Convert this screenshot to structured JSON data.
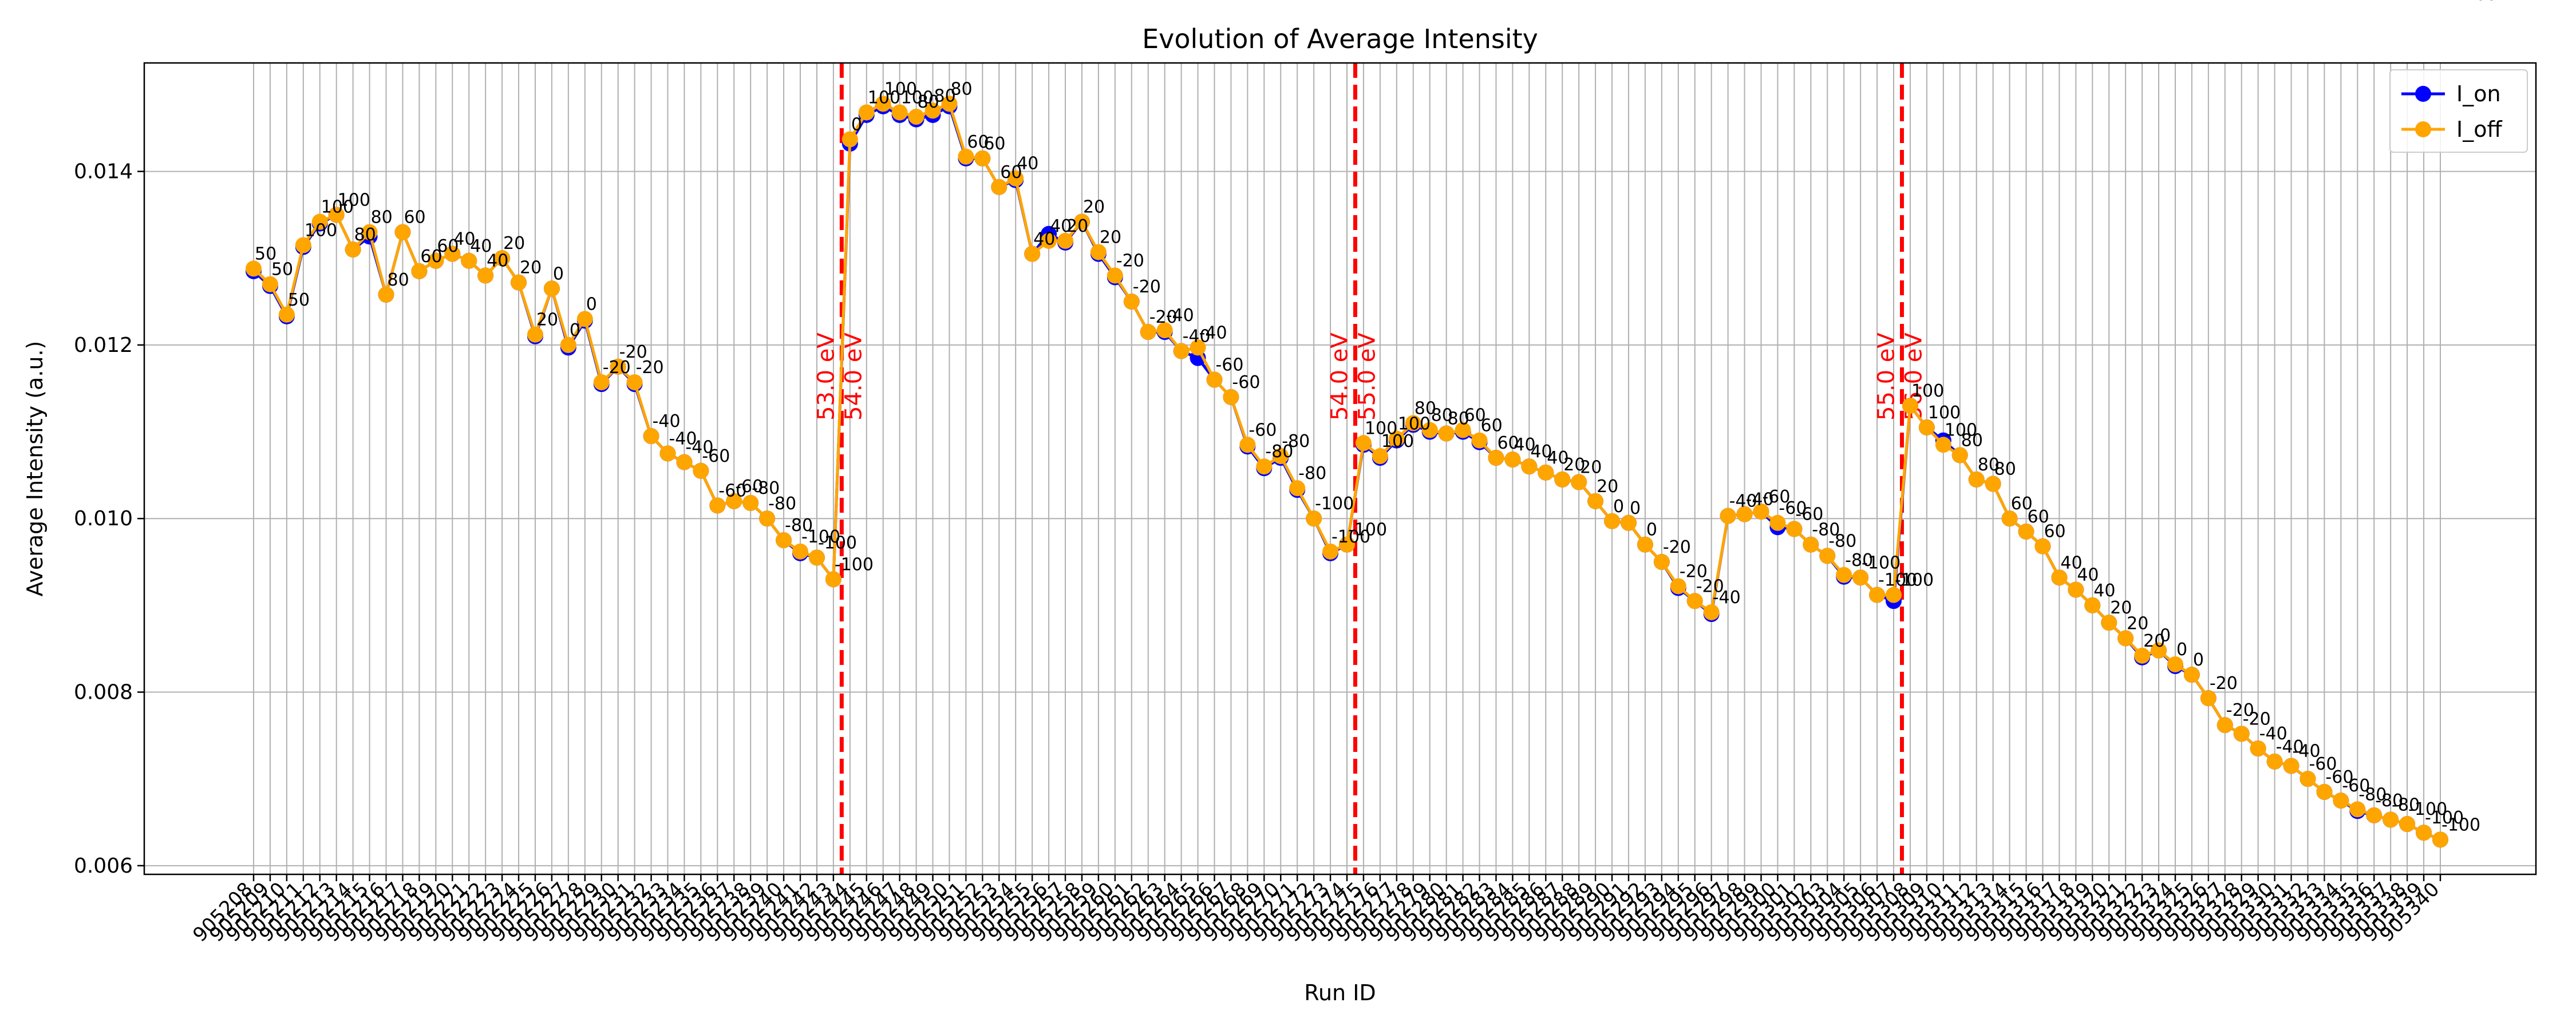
{
  "chart_data": {
    "type": "line",
    "title": "Evolution of Average Intensity",
    "xlabel": "Run ID",
    "ylabel": "Average Intensity (a.u.)",
    "ylim": [
      0.0059,
      0.01525
    ],
    "yticks": [
      0.006,
      0.008,
      0.01,
      0.012,
      0.014
    ],
    "ytick_labels": [
      "0.006",
      "0.008",
      "0.010",
      "0.012",
      "0.014"
    ],
    "grid": true,
    "legend_position": "top-right",
    "colors": {
      "I_on": "#0000ff",
      "I_off": "#ffa500",
      "vline": "#ff0000",
      "grid": "#b0b0b0"
    },
    "series": [
      {
        "name": "I_on",
        "values": [
          0.01285,
          0.01268,
          0.01233,
          0.01313,
          0.0134,
          0.0135,
          0.0131,
          0.01325,
          0.01258,
          0.0133,
          0.01285,
          0.01297,
          0.01305,
          0.01297,
          0.0128,
          0.013,
          0.01272,
          0.0121,
          0.01265,
          0.01197,
          0.01228,
          0.01155,
          0.01175,
          0.01155,
          0.01095,
          0.01075,
          0.01065,
          0.01055,
          0.01015,
          0.0102,
          0.01018,
          0.01,
          0.00975,
          0.0096,
          0.00955,
          0.0093,
          0.01432,
          0.01465,
          0.01475,
          0.01465,
          0.0146,
          0.01465,
          0.01475,
          0.01415,
          0.01415,
          0.01382,
          0.0139,
          0.01305,
          0.01328,
          0.01318,
          0.01342,
          0.01305,
          0.01278,
          0.0125,
          0.01215,
          0.01215,
          0.01193,
          0.01185,
          0.0116,
          0.0114,
          0.01083,
          0.01058,
          0.0107,
          0.01033,
          0.01,
          0.0096,
          0.0097,
          0.01085,
          0.0107,
          0.0109,
          0.01108,
          0.011,
          0.01098,
          0.011,
          0.01088,
          0.0107,
          0.01068,
          0.0106,
          0.01053,
          0.01045,
          0.01042,
          0.0102,
          0.00997,
          0.00995,
          0.0097,
          0.0095,
          0.0092,
          0.00905,
          0.0089,
          0.01003,
          0.01005,
          0.01008,
          0.0099,
          0.00988,
          0.0097,
          0.00957,
          0.00933,
          0.00932,
          0.00912,
          0.00905,
          0.0113,
          0.01105,
          0.0109,
          0.01073,
          0.01045,
          0.0104,
          0.01,
          0.00985,
          0.00968,
          0.00932,
          0.00918,
          0.009,
          0.0088,
          0.00862,
          0.0084,
          0.00848,
          0.0083,
          0.0082,
          0.00793,
          0.00762,
          0.00752,
          0.00735,
          0.0072,
          0.00715,
          0.007,
          0.00685,
          0.00675,
          0.00663,
          0.00658,
          0.00653,
          0.00648,
          0.00638,
          0.0063
        ]
      },
      {
        "name": "I_off",
        "values": [
          0.01288,
          0.0127,
          0.01235,
          0.01315,
          0.01342,
          0.0135,
          0.0131,
          0.0133,
          0.01258,
          0.0133,
          0.01285,
          0.01297,
          0.01305,
          0.01297,
          0.0128,
          0.013,
          0.01272,
          0.01212,
          0.01265,
          0.012,
          0.0123,
          0.01157,
          0.01175,
          0.01157,
          0.01095,
          0.01075,
          0.01065,
          0.01055,
          0.01015,
          0.0102,
          0.01018,
          0.01,
          0.00975,
          0.00962,
          0.00955,
          0.0093,
          0.01437,
          0.01468,
          0.01478,
          0.01468,
          0.01463,
          0.0147,
          0.01478,
          0.01417,
          0.01415,
          0.01382,
          0.01392,
          0.01305,
          0.0132,
          0.0132,
          0.01342,
          0.01307,
          0.0128,
          0.0125,
          0.01215,
          0.01217,
          0.01193,
          0.01197,
          0.0116,
          0.0114,
          0.01085,
          0.0106,
          0.01072,
          0.01035,
          0.01,
          0.00962,
          0.0097,
          0.01087,
          0.01072,
          0.01092,
          0.0111,
          0.01102,
          0.01098,
          0.01102,
          0.0109,
          0.0107,
          0.01068,
          0.0106,
          0.01053,
          0.01045,
          0.01042,
          0.0102,
          0.00997,
          0.00995,
          0.0097,
          0.0095,
          0.00922,
          0.00905,
          0.00892,
          0.01003,
          0.01005,
          0.01008,
          0.00995,
          0.00988,
          0.0097,
          0.00957,
          0.00935,
          0.00932,
          0.00912,
          0.00912,
          0.0113,
          0.01105,
          0.01085,
          0.01073,
          0.01045,
          0.0104,
          0.01,
          0.00985,
          0.00968,
          0.00932,
          0.00918,
          0.009,
          0.0088,
          0.00862,
          0.00842,
          0.00848,
          0.00832,
          0.0082,
          0.00793,
          0.00762,
          0.00752,
          0.00735,
          0.0072,
          0.00715,
          0.007,
          0.00685,
          0.00675,
          0.00665,
          0.00658,
          0.00653,
          0.00648,
          0.00638,
          0.0063
        ]
      }
    ],
    "x_tick_labels": [
      "905208",
      "905209",
      "905210",
      "905211",
      "905212",
      "905213",
      "905214",
      "905215",
      "905216",
      "905217",
      "905218",
      "905219",
      "905220",
      "905221",
      "905222",
      "905223",
      "905224",
      "905225",
      "905226",
      "905227",
      "905228",
      "905229",
      "905230",
      "905231",
      "905232",
      "905233",
      "905234",
      "905235",
      "905236",
      "905237",
      "905238",
      "905239",
      "905240",
      "905241",
      "905242",
      "905243",
      "905244",
      "905245",
      "905246",
      "905247",
      "905248",
      "905249",
      "905250",
      "905251",
      "905252",
      "905253",
      "905254",
      "905255",
      "905256",
      "905257",
      "905258",
      "905259",
      "905260",
      "905261",
      "905262",
      "905263",
      "905264",
      "905265",
      "905266",
      "905267",
      "905268",
      "905269",
      "905270",
      "905271",
      "905272",
      "905273",
      "905274",
      "905275",
      "905276",
      "905277",
      "905278",
      "905279",
      "905280",
      "905281",
      "905282",
      "905283",
      "905284",
      "905285",
      "905286",
      "905287",
      "905288",
      "905289",
      "905290",
      "905291",
      "905292",
      "905293",
      "905294",
      "905295",
      "905296",
      "905297",
      "905298",
      "905299",
      "905300",
      "905301",
      "905302",
      "905303",
      "905304",
      "905305",
      "905306",
      "905307",
      "905308",
      "905309",
      "905310",
      "905311",
      "905312",
      "905313",
      "905314",
      "905315",
      "905316",
      "905317",
      "905318",
      "905319",
      "905320",
      "905321",
      "905322",
      "905323",
      "905324",
      "905325",
      "905326",
      "905327",
      "905328",
      "905329",
      "905330",
      "905331",
      "905332",
      "905333",
      "905334",
      "905335",
      "905336",
      "905337",
      "905338",
      "905339",
      "905340"
    ],
    "point_labels": [
      "50",
      "50",
      "50",
      "100",
      "100",
      "100",
      "80",
      "80",
      "80",
      "60",
      "60",
      "60",
      "40",
      "40",
      "40",
      "20",
      "20",
      "20",
      "0",
      "0",
      "0",
      "-20",
      "-20",
      "-20",
      "-40",
      "-40",
      "-40",
      "-60",
      "-60",
      "-60",
      "-80",
      "-80",
      "-80",
      "-100",
      "-100",
      "-100",
      "0",
      "100",
      "100",
      "100",
      "80",
      "80",
      "80",
      "60",
      "60",
      "60",
      "40",
      "40",
      "40",
      "20",
      "20",
      "20",
      "-20",
      "-20",
      "-20",
      "-40",
      "-40",
      "-40",
      "-60",
      "-60",
      "-60",
      "-80",
      "-80",
      "-80",
      "-100",
      "-100",
      "-100",
      "100",
      "100",
      "100",
      "80",
      "80",
      "80",
      "60",
      "60",
      "60",
      "40",
      "40",
      "40",
      "20",
      "20",
      "20",
      "0",
      "0",
      "0",
      "-20",
      "-20",
      "-20",
      "-40",
      "-40",
      "-40",
      "-60",
      "-60",
      "-60",
      "-80",
      "-80",
      "-80",
      "-100",
      "-100",
      "-100",
      "100",
      "100",
      "100",
      "80",
      "80",
      "80",
      "60",
      "60",
      "60",
      "40",
      "40",
      "40",
      "20",
      "20",
      "20",
      "0",
      "0",
      "0",
      "-20",
      "-20",
      "-20",
      "-40",
      "-40",
      "-40",
      "-60",
      "-60",
      "-60",
      "-80",
      "-80",
      "-80",
      "-100",
      "-100",
      "-100",
      "-100"
    ],
    "vertical_lines": [
      {
        "x_index": 35.5,
        "labels": [
          "53.0 eV",
          "54.0 eV"
        ]
      },
      {
        "x_index": 66.5,
        "labels": [
          "54.0 eV",
          "55.0 eV"
        ]
      },
      {
        "x_index": 99.5,
        "labels": [
          "55.0 eV",
          "56.0 eV"
        ]
      }
    ]
  }
}
